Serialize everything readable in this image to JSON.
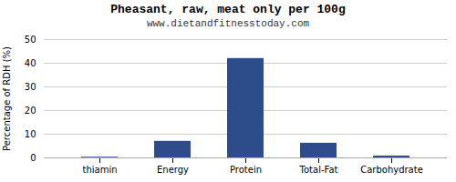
{
  "chart_data": {
    "type": "bar",
    "title": "Pheasant, raw, meat only per 100g",
    "subtitle": "www.dietandfitnesstoday.com",
    "ylabel": "Percentage of RDH (%)",
    "categories": [
      "thiamin",
      "Energy",
      "Protein",
      "Total-Fat",
      "Carbohydrate"
    ],
    "values": [
      0.3,
      7.0,
      42.0,
      6.2,
      0.8
    ],
    "color": "#2e4b8a",
    "ylim": [
      0,
      50
    ],
    "yticks": [
      0,
      10,
      20,
      30,
      40,
      50
    ],
    "grid": true
  }
}
